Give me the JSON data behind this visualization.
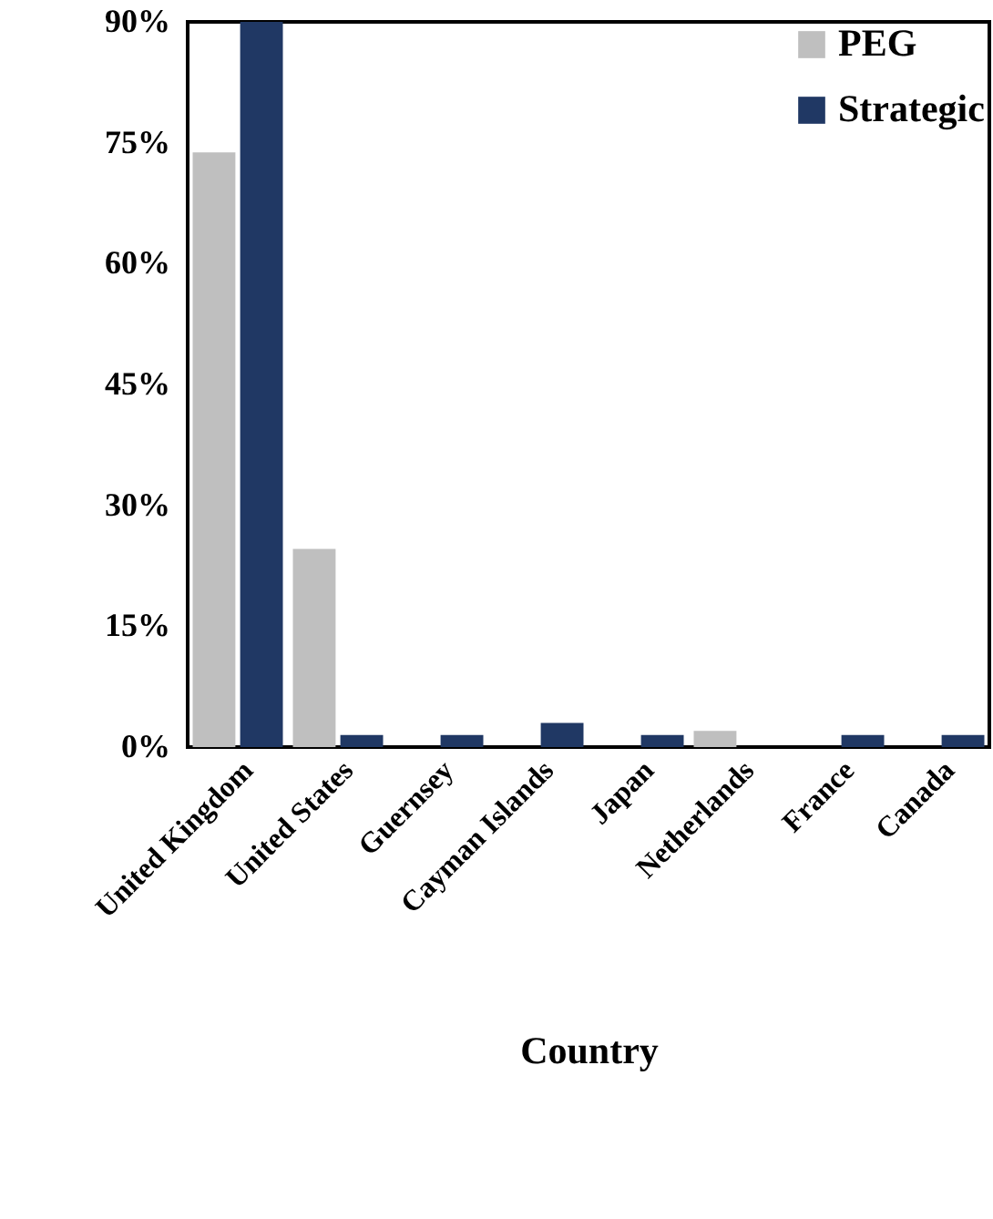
{
  "chart_data": {
    "type": "bar",
    "xlabel": "Country",
    "categories": [
      "United Kingdom",
      "United States",
      "Guernsey",
      "Cayman Islands",
      "Japan",
      "Netherlands",
      "France",
      "Canada"
    ],
    "series": [
      {
        "name": "PEG",
        "color": "#bfbfbf",
        "values": [
          73.8,
          24.6,
          0,
          0,
          0,
          2,
          0,
          0
        ]
      },
      {
        "name": "Strategic",
        "color": "#203864",
        "values": [
          90,
          1.5,
          1.5,
          3,
          1.5,
          0,
          1.5,
          1.5
        ]
      }
    ],
    "ylim": [
      0,
      90
    ],
    "yticks": [
      {
        "value": 0,
        "label": "0%"
      },
      {
        "value": 15,
        "label": "15%"
      },
      {
        "value": 30,
        "label": "30%"
      },
      {
        "value": 45,
        "label": "45%"
      },
      {
        "value": 60,
        "label": "60%"
      },
      {
        "value": 75,
        "label": "75%"
      },
      {
        "value": 90,
        "label": "90%"
      }
    ],
    "grid": false,
    "legend": "top right"
  }
}
